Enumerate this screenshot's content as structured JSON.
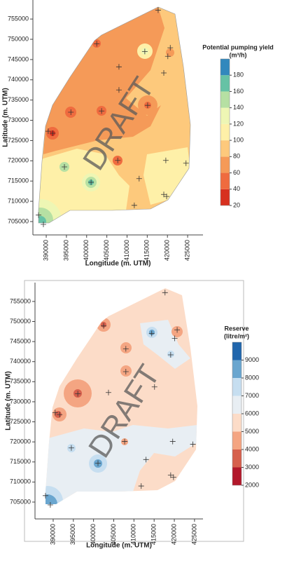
{
  "chart_data": [
    {
      "type": "contour",
      "legend_title": [
        "Potential pumping yield",
        "(m³/h)"
      ],
      "xlabel": "Longitude (m. UTM)",
      "ylabel": "Latitude (m. UTM)",
      "watermark": "DRAFT",
      "xlim": [
        386700,
        428800
      ],
      "ylim": [
        701700,
        759700
      ],
      "xticks": [
        390000,
        395000,
        400000,
        405000,
        410000,
        415000,
        420000,
        425000
      ],
      "yticks": [
        705000,
        710000,
        715000,
        720000,
        725000,
        730000,
        735000,
        740000,
        745000,
        750000,
        755000
      ],
      "colorbar": {
        "bins": [
          20,
          40,
          60,
          80,
          100,
          120,
          140,
          160,
          180,
          200
        ],
        "colors": [
          "#d7301f",
          "#ef6b3f",
          "#f59a58",
          "#fdc97c",
          "#fef0a8",
          "#eef6b4",
          "#b6e0a3",
          "#66c2a5",
          "#3288bd"
        ],
        "ticks": [
          20,
          40,
          60,
          80,
          100,
          120,
          140,
          160,
          180
        ]
      },
      "wells": {
        "x": [
          417700,
          402500,
          414400,
          420700,
          420100,
          408000,
          419100,
          408000,
          415100,
          396100,
          403700,
          391600,
          390500,
          419600,
          407700,
          394500,
          424600,
          401100,
          413000,
          419100,
          419800,
          411800,
          388100,
          389300
        ],
        "y": [
          757200,
          748900,
          747000,
          747900,
          745800,
          743200,
          741700,
          737500,
          733700,
          732000,
          732300,
          726800,
          727300,
          720100,
          720100,
          718500,
          719400,
          714700,
          715600,
          711700,
          711200,
          709000,
          706600,
          704300
        ]
      }
    },
    {
      "type": "contour",
      "legend_title": [
        "Reserve",
        "(litre/m²)"
      ],
      "xlabel": "Longitude (m. UTM)",
      "ylabel": "Latitude (m. UTM)",
      "watermark": "DRAFT",
      "xlim": [
        385500,
        427100
      ],
      "ylim": [
        700800,
        759700
      ],
      "xticks": [
        390000,
        395000,
        400000,
        405000,
        410000,
        415000,
        420000,
        425000
      ],
      "yticks": [
        705000,
        710000,
        715000,
        720000,
        725000,
        730000,
        735000,
        740000,
        745000,
        750000,
        755000
      ],
      "colorbar": {
        "bins": [
          2000,
          3000,
          4000,
          5000,
          6000,
          7000,
          8000,
          9000,
          10000
        ],
        "colors": [
          "#b2182b",
          "#d6604d",
          "#f4a582",
          "#fcdcc8",
          "#e8eef3",
          "#c6def0",
          "#6aa6cf",
          "#2166ac"
        ],
        "ticks": [
          2000,
          3000,
          4000,
          5000,
          6000,
          7000,
          8000,
          9000
        ]
      },
      "wells": {
        "x": [
          417700,
          402500,
          414400,
          420700,
          420100,
          408000,
          419100,
          408000,
          415100,
          396100,
          403700,
          391600,
          390500,
          419600,
          407700,
          394500,
          424600,
          401100,
          413000,
          419100,
          419800,
          411800,
          388100,
          389300
        ],
        "y": [
          757200,
          748900,
          747000,
          747900,
          745800,
          743200,
          741700,
          737500,
          733700,
          732000,
          732300,
          726800,
          727300,
          720100,
          720100,
          718500,
          719400,
          714700,
          715600,
          711700,
          711200,
          709000,
          706600,
          704300
        ]
      }
    }
  ]
}
